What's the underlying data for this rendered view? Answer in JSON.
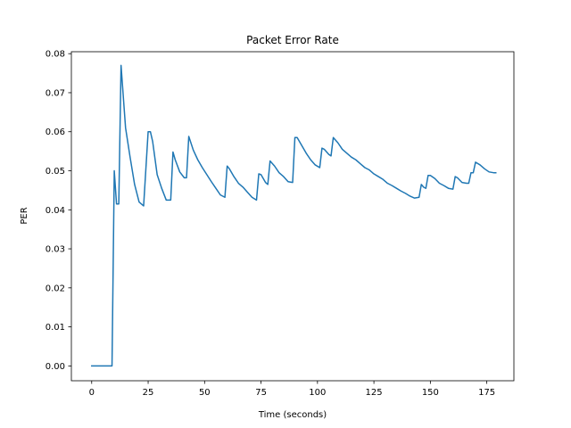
{
  "chart_data": {
    "type": "line",
    "title": "Packet Error Rate",
    "xlabel": "Time (seconds)",
    "ylabel": "PER",
    "xlim": [
      -9,
      187
    ],
    "ylim": [
      -0.0038,
      0.0805
    ],
    "x_ticks": [
      0,
      25,
      50,
      75,
      100,
      125,
      150,
      175
    ],
    "x_tick_labels": [
      "0",
      "25",
      "50",
      "75",
      "100",
      "125",
      "150",
      "175"
    ],
    "y_ticks": [
      0.0,
      0.01,
      0.02,
      0.03,
      0.04,
      0.05,
      0.06,
      0.07,
      0.08
    ],
    "y_tick_labels": [
      "0.00",
      "0.01",
      "0.02",
      "0.03",
      "0.04",
      "0.05",
      "0.06",
      "0.07",
      "0.08"
    ],
    "grid": false,
    "line_color": "#1f77b4",
    "series": [
      {
        "x": [
          0,
          9,
          10,
          11,
          12,
          13,
          15,
          17,
          19,
          21,
          23,
          25,
          26,
          27,
          29,
          31,
          33,
          35,
          36,
          37,
          39,
          41,
          42,
          43,
          45,
          47,
          49,
          51,
          53,
          55,
          57,
          59,
          60,
          61,
          63,
          65,
          67,
          69,
          71,
          73,
          74,
          75,
          77,
          78,
          79,
          81,
          83,
          85,
          87,
          89,
          90,
          91,
          93,
          95,
          97,
          99,
          101,
          102,
          103,
          105,
          106,
          107,
          109,
          111,
          113,
          115,
          117,
          119,
          121,
          123,
          125,
          127,
          129,
          131,
          133,
          135,
          137,
          139,
          141,
          143,
          145,
          146,
          147,
          148,
          149,
          150,
          152,
          154,
          156,
          158,
          160,
          161,
          162,
          164,
          166,
          167,
          168,
          169,
          170,
          172,
          174,
          176,
          178,
          179
        ],
        "y": [
          0.0,
          0.0,
          0.05,
          0.0415,
          0.0415,
          0.077,
          0.061,
          0.0535,
          0.0465,
          0.042,
          0.041,
          0.06,
          0.06,
          0.0575,
          0.049,
          0.0455,
          0.0425,
          0.0425,
          0.0548,
          0.0528,
          0.0497,
          0.0482,
          0.0482,
          0.0588,
          0.0553,
          0.0528,
          0.0508,
          0.049,
          0.0472,
          0.0455,
          0.0438,
          0.0432,
          0.0512,
          0.0505,
          0.0485,
          0.0468,
          0.0458,
          0.0445,
          0.0432,
          0.0425,
          0.0492,
          0.049,
          0.047,
          0.0465,
          0.0525,
          0.0512,
          0.0495,
          0.0485,
          0.0472,
          0.047,
          0.0585,
          0.0585,
          0.0565,
          0.0545,
          0.0528,
          0.0515,
          0.0508,
          0.0558,
          0.0555,
          0.0542,
          0.0538,
          0.0585,
          0.0572,
          0.0555,
          0.0545,
          0.0535,
          0.0528,
          0.0518,
          0.0508,
          0.0502,
          0.0492,
          0.0485,
          0.0478,
          0.0468,
          0.0462,
          0.0455,
          0.0448,
          0.0442,
          0.0435,
          0.043,
          0.0432,
          0.0465,
          0.0458,
          0.0455,
          0.0488,
          0.0488,
          0.048,
          0.0468,
          0.0462,
          0.0455,
          0.0453,
          0.0485,
          0.0482,
          0.047,
          0.0468,
          0.0468,
          0.0495,
          0.0495,
          0.0522,
          0.0515,
          0.0505,
          0.0497,
          0.0495,
          0.0495
        ]
      }
    ]
  }
}
